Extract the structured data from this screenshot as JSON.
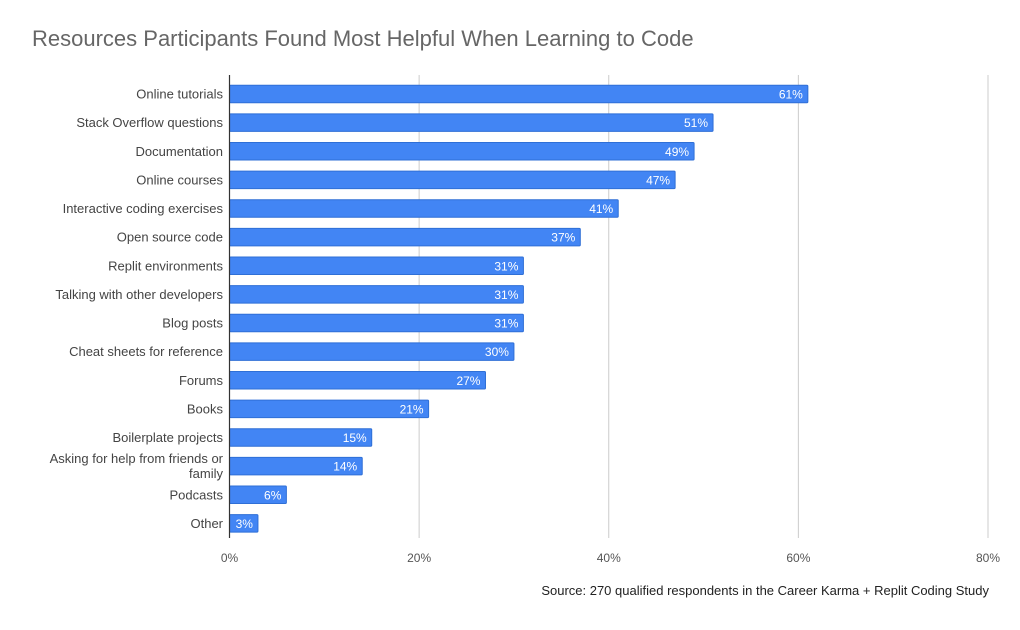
{
  "colors": {
    "bar": "#4285f4",
    "bar_border": "#2f6fd6",
    "grid": "#cccccc",
    "axis": "#333333",
    "tick_text": "#555555",
    "label_text": "#444444",
    "data_label": "#ffffff"
  },
  "chart_data": {
    "type": "bar",
    "orientation": "horizontal",
    "title": "Resources Participants Found Most Helpful When Learning to Code",
    "source": "Source: 270 qualified respondents in the Career Karma + Replit Coding Study",
    "xlabel": "",
    "ylabel": "",
    "xlim": [
      0,
      80
    ],
    "x_ticks": [
      "0%",
      "20%",
      "40%",
      "60%",
      "80%"
    ],
    "grid": true,
    "legend": "none",
    "categories": [
      "Online tutorials",
      "Stack Overflow questions",
      "Documentation",
      "Online courses",
      "Interactive coding exercises",
      "Open source code",
      "Replit environments",
      "Talking with other developers",
      "Blog posts",
      "Cheat sheets for reference",
      "Forums",
      "Books",
      "Boilerplate projects",
      "Asking for help from friends or family",
      "Podcasts",
      "Other"
    ],
    "values": [
      61,
      51,
      49,
      47,
      41,
      37,
      31,
      31,
      31,
      30,
      27,
      21,
      15,
      14,
      6,
      3
    ],
    "data_labels": [
      "61%",
      "51%",
      "49%",
      "47%",
      "41%",
      "37%",
      "31%",
      "31%",
      "31%",
      "30%",
      "27%",
      "21%",
      "15%",
      "14%",
      "6%",
      "3%"
    ]
  }
}
